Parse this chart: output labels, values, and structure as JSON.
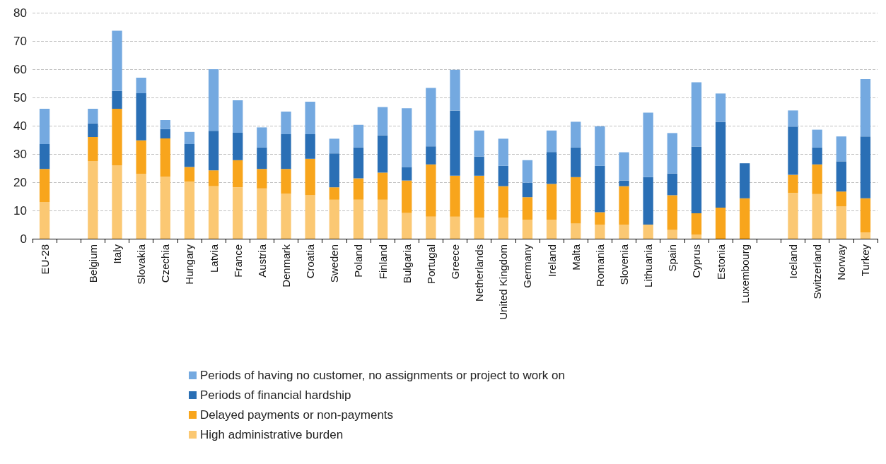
{
  "chart_data": {
    "type": "bar",
    "stacked": true,
    "categories": [
      "EU-28",
      null,
      "Belgium",
      "Italy",
      "Slovakia",
      "Czechia",
      "Hungary",
      "Latvia",
      "France",
      "Austria",
      "Denmark",
      "Croatia",
      "Sweden",
      "Poland",
      "Finland",
      "Bulgaria",
      "Portugal",
      "Greece",
      "Netherlands",
      "United Kingdom",
      "Germany",
      "Ireland",
      "Malta",
      "Romania",
      "Slovenia",
      "Lithuania",
      "Spain",
      "Cyprus",
      "Estonia",
      "Luxembourg",
      null,
      "Iceland",
      "Switzerland",
      "Norway",
      "Turkey"
    ],
    "series": [
      {
        "name": "High administrative burden",
        "color": "#fbc873",
        "values": [
          13,
          null,
          27.5,
          26,
          23,
          21.9,
          20.2,
          18.6,
          18.2,
          17.8,
          15.9,
          15.4,
          13.8,
          13.8,
          13.8,
          9.1,
          7.8,
          7.8,
          7.4,
          7.4,
          6.7,
          6.7,
          5.4,
          5,
          5,
          5,
          3.1,
          1.4,
          0,
          0,
          null,
          16.2,
          15.8,
          11.4,
          2.2
        ]
      },
      {
        "name": "Delayed payments or non-payments",
        "color": "#f8a51c",
        "values": [
          11.7,
          null,
          8.5,
          20,
          11.8,
          13.6,
          5.2,
          5.6,
          9.6,
          6.9,
          8.8,
          12.9,
          4.4,
          7.6,
          9.6,
          11.5,
          18.5,
          14.5,
          14.9,
          11.2,
          8,
          12.7,
          16.4,
          4.4,
          13.6,
          0,
          12.3,
          7.6,
          11,
          14.3,
          null,
          6.4,
          10.5,
          5.3,
          12.1
        ]
      },
      {
        "name": "Periods of financial hardship",
        "color": "#2a6fb5",
        "values": [
          8.8,
          null,
          4.8,
          6.3,
          16.7,
          3.3,
          8.1,
          14,
          9.7,
          7.6,
          12.3,
          8.7,
          12,
          10.9,
          13.2,
          4.8,
          6.4,
          23.1,
          6.8,
          7.2,
          5.1,
          11.3,
          10.5,
          16.4,
          2,
          16.8,
          7.7,
          23.6,
          30.4,
          12.4,
          null,
          17.1,
          6,
          10.7,
          21.9
        ]
      },
      {
        "name": "Periods of having no customer, no assignments or project to work on",
        "color": "#74a9e0",
        "values": [
          12.5,
          null,
          5.2,
          21.3,
          5.5,
          3.2,
          4.3,
          21.8,
          11.5,
          7.1,
          8,
          11.5,
          5.2,
          8,
          10,
          20.8,
          20.7,
          14.4,
          9.2,
          9.6,
          8,
          7.6,
          9.1,
          14,
          10,
          22.8,
          14.3,
          22.8,
          10,
          0,
          null,
          5.7,
          6.3,
          8.8,
          20.3
        ]
      }
    ],
    "ylim": [
      0,
      80
    ],
    "yticks": [
      0,
      10,
      20,
      30,
      40,
      50,
      60,
      70,
      80
    ],
    "grid": "y",
    "legend": "bottom"
  }
}
